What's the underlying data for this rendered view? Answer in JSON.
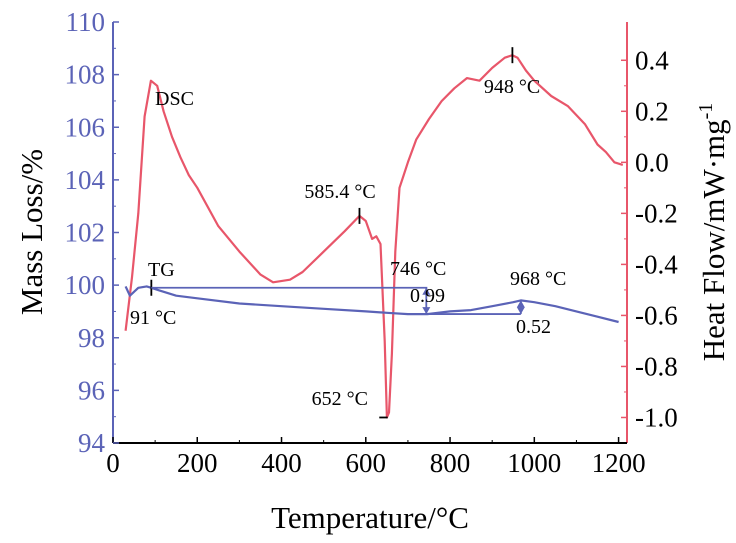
{
  "chart_data": {
    "type": "line",
    "xlabel": "Temperature/°C",
    "ylabel_left": "Mass Loss/%",
    "ylabel_right": "Heat Flow/mW·mg",
    "ylabel_right_superscript": "-1",
    "xlim": [
      0,
      1220
    ],
    "ylim_left": [
      94,
      110
    ],
    "ylim_right": [
      -1.1,
      0.55
    ],
    "x_ticks": [
      "0",
      "200",
      "400",
      "600",
      "800",
      "1000",
      "1200"
    ],
    "x_tick_values": [
      0,
      200,
      400,
      600,
      800,
      1000,
      1200
    ],
    "y_left_ticks": [
      "94",
      "96",
      "98",
      "100",
      "102",
      "104",
      "106",
      "108",
      "110"
    ],
    "y_left_tick_values": [
      94,
      96,
      98,
      100,
      102,
      104,
      106,
      108,
      110
    ],
    "y_right_ticks": [
      "0.4",
      "0.2",
      "0.0",
      "-0.2",
      "-0.4",
      "-0.6",
      "-0.8",
      "-1.0"
    ],
    "y_right_tick_values": [
      0.4,
      0.2,
      0.0,
      -0.2,
      -0.4,
      -0.6,
      -0.8,
      -1.0
    ],
    "colors": {
      "left_axis": "#5b63b7",
      "right_axis": "#e8566a",
      "tg": "#5b63b7",
      "dsc": "#e8566a",
      "text": "#000000"
    },
    "series": [
      {
        "name": "DSC",
        "axis": "right",
        "color": "#e8566a",
        "x": [
          30,
          45,
          60,
          75,
          90,
          105,
          120,
          140,
          160,
          180,
          200,
          250,
          300,
          350,
          380,
          420,
          450,
          500,
          550,
          585,
          600,
          615,
          625,
          635,
          645,
          650,
          655,
          662,
          670,
          680,
          690,
          700,
          720,
          750,
          780,
          810,
          840,
          870,
          900,
          930,
          948,
          960,
          980,
          1000,
          1040,
          1080,
          1120,
          1150,
          1170,
          1190,
          1210
        ],
        "y": [
          -0.66,
          -0.45,
          -0.2,
          0.18,
          0.32,
          0.3,
          0.2,
          0.1,
          0.02,
          -0.05,
          -0.1,
          -0.25,
          -0.35,
          -0.44,
          -0.47,
          -0.46,
          -0.43,
          -0.35,
          -0.27,
          -0.21,
          -0.23,
          -0.3,
          -0.29,
          -0.32,
          -0.7,
          -1.0,
          -0.98,
          -0.75,
          -0.35,
          -0.1,
          -0.05,
          0.0,
          0.09,
          0.17,
          0.24,
          0.29,
          0.33,
          0.32,
          0.37,
          0.41,
          0.42,
          0.41,
          0.36,
          0.32,
          0.26,
          0.22,
          0.15,
          0.07,
          0.04,
          0.0,
          -0.01
        ]
      },
      {
        "name": "TG",
        "axis": "left",
        "color": "#5b63b7",
        "x": [
          30,
          40,
          60,
          80,
          91,
          110,
          150,
          200,
          300,
          400,
          500,
          600,
          650,
          700,
          746,
          800,
          850,
          900,
          950,
          968,
          1000,
          1050,
          1100,
          1150,
          1200
        ],
        "y": [
          99.95,
          99.6,
          99.9,
          99.95,
          99.9,
          99.8,
          99.6,
          99.5,
          99.3,
          99.2,
          99.1,
          99.0,
          98.95,
          98.9,
          98.9,
          99.0,
          99.05,
          99.2,
          99.35,
          99.42,
          99.35,
          99.2,
          99.0,
          98.8,
          98.6
        ]
      }
    ],
    "annotations": [
      {
        "text": "DSC",
        "x": 90,
        "y_right": 0.3
      },
      {
        "text": "TG",
        "x": 91,
        "y_left": 99.9
      },
      {
        "text": "91 °C",
        "x": 91,
        "y_left": 99.9
      },
      {
        "text": "585.4 °C",
        "x": 585,
        "y_right": -0.21
      },
      {
        "text": "652 °C",
        "x": 652,
        "y_right": -1.0
      },
      {
        "text": "746 °C",
        "x": 746,
        "y_left": 98.9
      },
      {
        "text": "0.99",
        "x": 746,
        "y_left": 99.4
      },
      {
        "text": "948 °C",
        "x": 948,
        "y_right": 0.42
      },
      {
        "text": "968 °C",
        "x": 968,
        "y_left": 99.42
      },
      {
        "text": "0.52",
        "x": 968,
        "y_left": 98.9
      }
    ]
  }
}
